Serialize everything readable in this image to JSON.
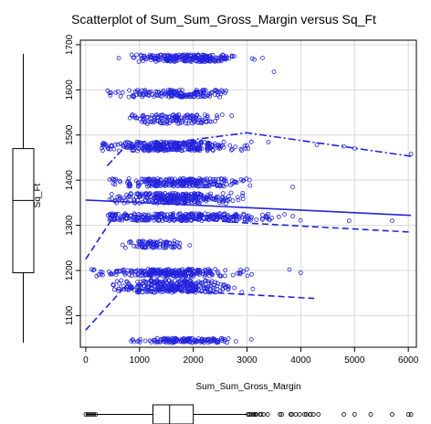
{
  "chart_data": {
    "type": "scatter",
    "title": "Scatterplot of Sum_Sum_Gross_Margin versus Sq_Ft",
    "xlabel": "Sum_Sum_Gross_Margin",
    "ylabel": "Sq_Ft",
    "xlim": [
      -100,
      6150
    ],
    "ylim": [
      1030,
      1710
    ],
    "x_ticks": [
      0,
      1000,
      2000,
      3000,
      4000,
      5000,
      6000
    ],
    "y_ticks": [
      1100,
      1200,
      1300,
      1400,
      1500,
      1600,
      1700
    ],
    "grid": true,
    "color": "#2222dd",
    "marginal_boxplots": [
      "x-bottom",
      "y-left"
    ],
    "x_box": {
      "whisker_low": 0,
      "q1": 1250,
      "median": 1560,
      "q3": 2000,
      "whisker_high": 3000
    },
    "y_box": {
      "whisker_low": 1040,
      "q1": 1195,
      "median": 1355,
      "q3": 1470,
      "whisker_high": 1680
    },
    "clusters": [
      {
        "y": 1670,
        "spread": 8,
        "x_min": 400,
        "x_max": 3300,
        "x_center": 1900,
        "x_sd": 500,
        "n": 230
      },
      {
        "y": 1592,
        "spread": 8,
        "x_min": 400,
        "x_max": 3200,
        "x_center": 1700,
        "x_sd": 500,
        "n": 160
      },
      {
        "y": 1535,
        "spread": 10,
        "x_min": 800,
        "x_max": 2900,
        "x_center": 1700,
        "x_sd": 400,
        "n": 130
      },
      {
        "y": 1475,
        "spread": 10,
        "x_min": 300,
        "x_max": 4500,
        "x_center": 1600,
        "x_sd": 650,
        "n": 320
      },
      {
        "y": 1395,
        "spread": 9,
        "x_min": 400,
        "x_max": 4000,
        "x_center": 1700,
        "x_sd": 550,
        "n": 240
      },
      {
        "y": 1360,
        "spread": 12,
        "x_min": 400,
        "x_max": 3500,
        "x_center": 1700,
        "x_sd": 550,
        "n": 280
      },
      {
        "y": 1318,
        "spread": 8,
        "x_min": 400,
        "x_max": 5800,
        "x_center": 1900,
        "x_sd": 900,
        "n": 300
      },
      {
        "y": 1258,
        "spread": 8,
        "x_min": 600,
        "x_max": 2000,
        "x_center": 1300,
        "x_sd": 300,
        "n": 90
      },
      {
        "y": 1195,
        "spread": 8,
        "x_min": 100,
        "x_max": 4300,
        "x_center": 1500,
        "x_sd": 600,
        "n": 260
      },
      {
        "y": 1165,
        "spread": 14,
        "x_min": 500,
        "x_max": 3600,
        "x_center": 1600,
        "x_sd": 550,
        "n": 300
      },
      {
        "y": 1045,
        "spread": 5,
        "x_min": 500,
        "x_max": 3100,
        "x_center": 1800,
        "x_sd": 450,
        "n": 140
      }
    ],
    "outliers": [
      {
        "x": 6050,
        "y": 1458
      },
      {
        "x": 5000,
        "y": 1470
      },
      {
        "x": 4800,
        "y": 1475
      },
      {
        "x": 3850,
        "y": 1385
      },
      {
        "x": 4300,
        "y": 1478
      },
      {
        "x": 5700,
        "y": 1310
      },
      {
        "x": 4900,
        "y": 1310
      },
      {
        "x": 4000,
        "y": 1195
      },
      {
        "x": 3500,
        "y": 1640
      }
    ],
    "fit_lines": [
      {
        "style": "solid",
        "points": [
          [
            0,
            1356
          ],
          [
            6050,
            1322
          ]
        ]
      },
      {
        "style": "dash-dot",
        "points": [
          [
            400,
            1432
          ],
          [
            700,
            1470
          ],
          [
            3000,
            1505
          ],
          [
            6050,
            1453
          ]
        ]
      },
      {
        "style": "dashed",
        "points": [
          [
            0,
            1225
          ],
          [
            550,
            1325
          ],
          [
            3000,
            1305
          ],
          [
            6050,
            1285
          ]
        ]
      },
      {
        "style": "dashed",
        "points": [
          [
            0,
            1068
          ],
          [
            700,
            1160
          ],
          [
            2500,
            1150
          ],
          [
            4250,
            1138
          ]
        ]
      }
    ]
  }
}
